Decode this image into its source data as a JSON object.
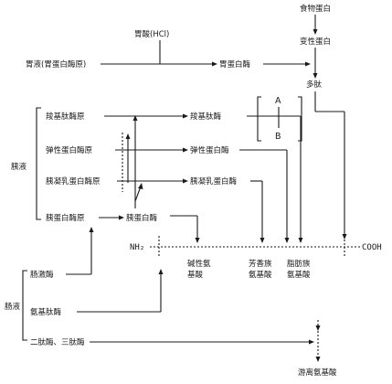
{
  "diagram": {
    "labels": {
      "food_protein": "食物蛋白",
      "denatured_protein": "变性蛋白",
      "gastric_acid": "胃酸(HCl)",
      "gastric_juice": "胃液(胃蛋白酶原)",
      "pepsin": "胃蛋白酶",
      "polypeptide": "多肽",
      "A": "A",
      "B": "B",
      "pancreatic_juice": "胰液",
      "procarboxypeptidase": "羧基肽酶原",
      "carboxypeptidase": "羧基肽酶",
      "proelastase": "弹性蛋白酶原",
      "elastase": "弹性蛋白酶",
      "chymotrypsinogen": "胰凝乳蛋白酶原",
      "chymotrypsin": "胰凝乳蛋白酶",
      "trypsinogen": "胰蛋白酶原",
      "trypsin": "胰蛋白酶",
      "nh2": "NH₂",
      "cooh": "COOH",
      "basic_aa_1": "碱性氨",
      "basic_aa_2": "基酸",
      "aromatic_aa_1": "芳香族",
      "aromatic_aa_2": "氨基酸",
      "aliphatic_aa_1": "脂肪族",
      "aliphatic_aa_2": "氨基酸",
      "intestinal_juice": "肠液",
      "enterokinase": "肠激酶",
      "aminopeptidase": "氨基肽酶",
      "di_tri_peptidase": "二肽酶、三肽酶",
      "free_amino_acids": "游离氨基酸"
    }
  }
}
